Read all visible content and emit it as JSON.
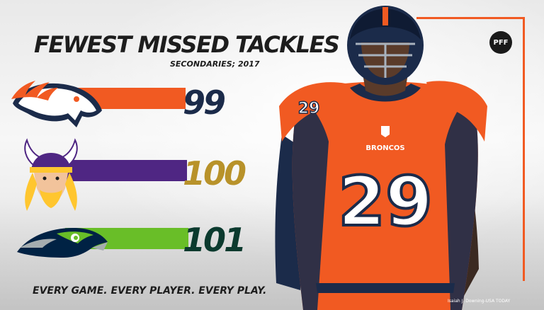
{
  "chart_data": {
    "type": "bar",
    "orientation": "horizontal",
    "title": "FEWEST MISSED TACKLES",
    "subtitle": "SECONDARIES; 2017",
    "categories": [
      "Denver Broncos",
      "Minnesota Vikings",
      "Seattle Seahawks"
    ],
    "values": [
      99,
      100,
      101
    ],
    "value_labels": [
      "99",
      "100",
      "101"
    ],
    "colors": [
      "#f15a22",
      "#4f2683",
      "#69be28"
    ],
    "value_label_colors": [
      "#1b2b4a",
      "#b8922a",
      "#0b3a2e"
    ],
    "logo_icons": [
      "broncos-logo-icon",
      "vikings-logo-icon",
      "seahawks-logo-icon"
    ]
  },
  "branding": {
    "logo": "PFF",
    "tagline": "EVERY GAME. EVERY PLAYER. EVERY PLAY.",
    "photo_credit": "Isaiah J. Downing-USA TODAY"
  },
  "player": {
    "jersey_number": "29",
    "jersey_wordmark": "BRONCOS",
    "shoulder_number": "29",
    "jersey_color": "#f15a22",
    "accent_color": "#1b2b4a"
  }
}
